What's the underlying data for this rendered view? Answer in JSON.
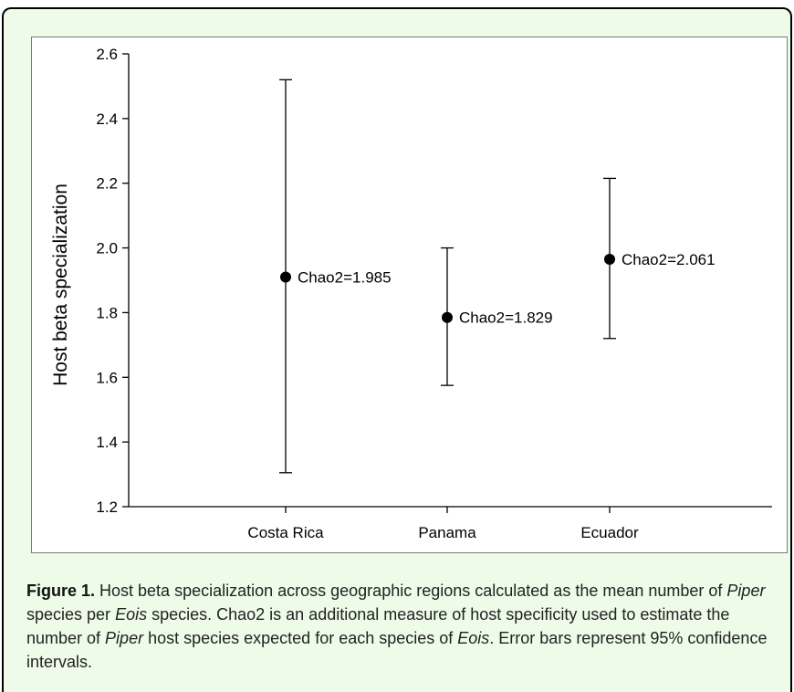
{
  "chart_data": {
    "type": "scatter",
    "ylabel": "Host beta specialization",
    "xlabel": "",
    "ylim": [
      1.2,
      2.6
    ],
    "yticks": [
      "1.2",
      "1.4",
      "1.6",
      "1.8",
      "2.0",
      "2.2",
      "2.4",
      "2.6"
    ],
    "categories": [
      "Costa Rica",
      "Panama",
      "Ecuador"
    ],
    "values": [
      1.91,
      1.785,
      1.965
    ],
    "ci_low": [
      1.305,
      1.575,
      1.72
    ],
    "ci_high": [
      2.52,
      2.0,
      2.215
    ],
    "point_labels": [
      "Chao2=1.985",
      "Chao2=1.829",
      "Chao2=2.061"
    ],
    "grid": false,
    "colors": {
      "points": "#000000",
      "axes": "#000000"
    }
  },
  "caption": {
    "label": "Figure 1.",
    "parts": [
      " Host beta specialization across geographic regions calculated as the mean number of ",
      "Piper",
      " species per ",
      "Eois",
      " species. Chao2 is an additional measure of host specificity used to estimate the number of ",
      "Piper",
      " host species expected for each species of ",
      "Eois",
      ". Error bars represent 95% confidence intervals."
    ]
  },
  "colors": {
    "panel_bg": "#eefbe8",
    "plot_bg": "#ffffff"
  }
}
